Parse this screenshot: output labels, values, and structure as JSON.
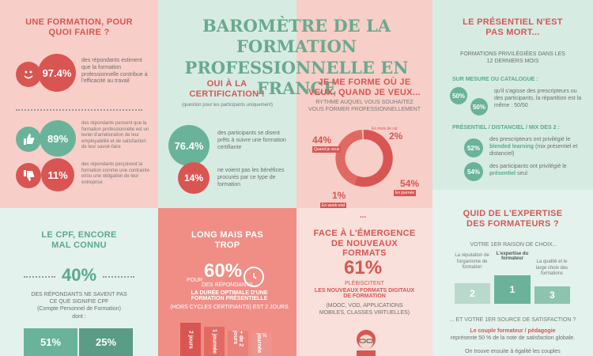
{
  "title": "BAROMÈTRE DE LA FORMATION PROFESSIONNELLE EN FRANCE",
  "col1": {
    "heading": "UNE FORMATION, POUR QUOI FAIRE ?",
    "stat1": {
      "value": "97.4%",
      "text": "des répondants estiment que la formation professionnelle contribue à l'efficacité au travail"
    },
    "stat2": {
      "value": "89%",
      "text": "des répondants pensent que la formation professionnelle est un levier d'amélioration de leur employabilité et de satisfaction de leur savoir-faire"
    },
    "stat3": {
      "value": "11%",
      "text": "des répondants perçoivent la formation comme une contrainte et/ou une obligation de leur entreprise"
    }
  },
  "col2": {
    "heading": "OUI À LA CERTIFICATION !",
    "note": "(question pour les participants uniquement)",
    "stat1": {
      "value": "76.4%",
      "text": "des participants se disent prêts à suivre une formation certifiante"
    },
    "stat2": {
      "value": "14%",
      "text": "ne voient pas les bénéfices procurés par ce type de formation"
    }
  },
  "col3": {
    "heading": "JE ME FORME OÙ JE VEUX, QUAND JE VEUX...",
    "sub": "RYTHME AUQUEL VOUS SOUHAITEZ VOUS FORMER PROFESSIONNELLEMENT",
    "donut": {
      "p44": "44%",
      "l44": "Quand je veux",
      "p2": "2%",
      "l2": "En mois de rat",
      "p54": "54%",
      "l54": "En journée",
      "p1": "1%",
      "l1": "En week-end"
    },
    "values": [
      44,
      2,
      54,
      1
    ]
  },
  "col4": {
    "heading": "LE PRÉSENTIEL N'EST PAS MORT...",
    "sub": "FORMATIONS PRIVILÉGIÉES DANS LES 12 DERNIERS MOIS",
    "q1": "SUR MESURE OU CATALOGUE :",
    "q1text": "qu'il s'agisse des prescripteurs ou des participants, la répartition est la même : 50/50",
    "c50a": "50%",
    "c50b": "50%",
    "q2": "PRÉSENTIEL / DISTANCIEL / MIX DES 2 :",
    "s52": "52%",
    "s52text_a": "des prescripteurs ont privilégié le",
    "s52text_b": "blended learning",
    "s52text_c": "(mix présentiel et distanciel)",
    "s54": "54%",
    "s54text_a": "des participants ont privilégié le",
    "s54text_b": "présentiel",
    "s54text_c": "seul"
  },
  "row2": {
    "cpf_heading": "LE CPF, ENCORE MAL CONNU",
    "cpf_big": "40%",
    "cpf_text": "DES RÉPONDANTS NE SAVENT PAS CE QUE SIGNIFIE CPF",
    "cpf_sub": "(Compte Personnel de Formation)",
    "cpf_dont": "dont :",
    "cpf_a": "51%",
    "cpf_b": "25%",
    "long_heading": "LONG MAIS PAS TROP",
    "long_pour": "POUR",
    "long_big": "60%",
    "long_text1": "DES RÉPONDANTS",
    "long_text2": "LA DURÉE OPTIMALE D'UNE FORMATION PRÉSENTIELLE",
    "long_text3": "(HORS CYCLES CERTIFIANTS) EST 2 JOURS",
    "long_bars": [
      "2 jours",
      "1 journée",
      "+ de 2 jours",
      "½ journée"
    ],
    "face_heading": "FACE À L'ÉMERGENCE DE NOUVEAUX FORMATS",
    "face_big": "61%",
    "face_text1": "PLÉBISCITENT",
    "face_text2": "LES NOUVEAUX FORMATS DIGITAUX DE FORMATION",
    "face_text3": "(MOOC, VOD, APPLICATIONS MOBILES, CLASSES VIRTUELLES)",
    "exp_heading": "QUID DE L'EXPERTISE DES FORMATEURS ?",
    "exp_q1": "VOTRE 1ER RAISON DE CHOIX...",
    "pod_1": "1",
    "pod_2": "2",
    "pod_3": "3",
    "pod_lbl1": "L'expertise du formateur",
    "pod_lbl2": "La réputation de l'organisme de formation",
    "pod_lbl3": "La qualité et le large choix des formations",
    "exp_q2": "... ET VOTRE 1ER SOURCE DE SATISFACTION ?",
    "exp_a2": "Le couple formateur / pédagogie",
    "exp_a2b": "représente 50 % de la note de satisfaction globale.",
    "exp_a3": "On trouve ensuite à égalité les couples"
  },
  "colors": {
    "red": "#d95552",
    "green": "#5aa98e",
    "pink": "#f7cfc8",
    "mint": "#d6ece3"
  }
}
